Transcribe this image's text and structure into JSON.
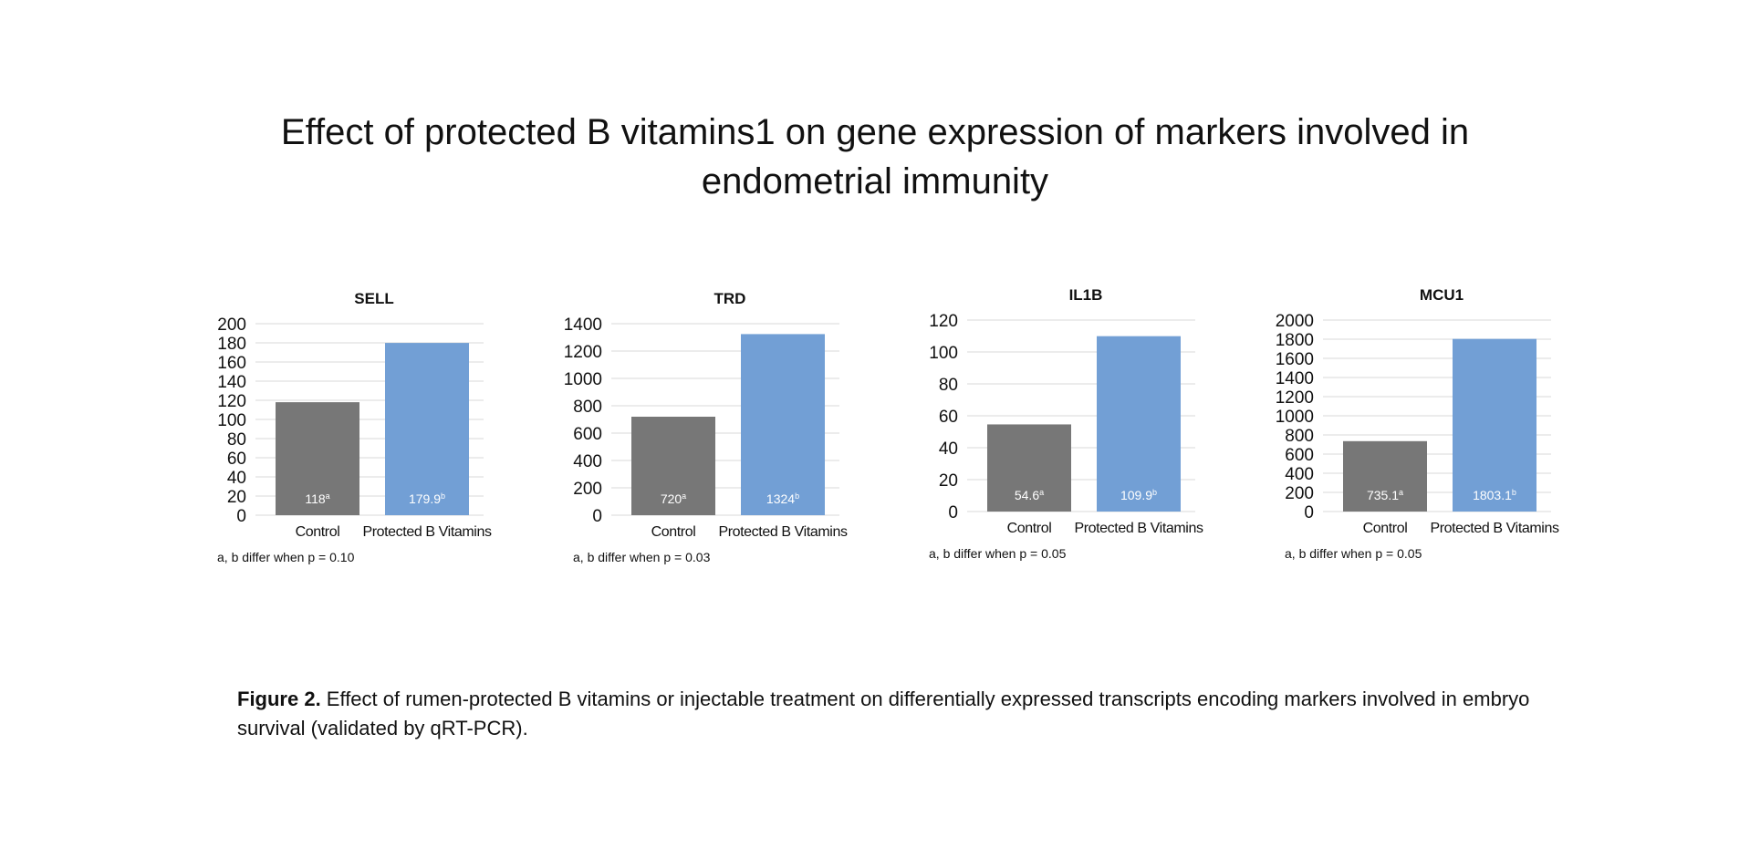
{
  "title": "Effect of protected B vitamins1 on gene expression of markers involved in endometrial immunity",
  "colors": {
    "control": "#777777",
    "treatment": "#729fd5",
    "grid": "#d9d9d9"
  },
  "chart_data": [
    {
      "type": "bar",
      "title": "SELL",
      "categories": [
        "Control",
        "Protected B Vitamins"
      ],
      "values": [
        118,
        179.9
      ],
      "data_labels": [
        {
          "value": "118",
          "sup": "a"
        },
        {
          "value": "179.9",
          "sup": "b"
        }
      ],
      "yticks": [
        0,
        20,
        40,
        60,
        80,
        100,
        120,
        140,
        160,
        180,
        200
      ],
      "ylim": [
        0,
        200
      ],
      "grid": true,
      "note": "a, b differ when p = 0.10"
    },
    {
      "type": "bar",
      "title": "TRD",
      "categories": [
        "Control",
        "Protected B Vitamins"
      ],
      "values": [
        720,
        1324
      ],
      "data_labels": [
        {
          "value": "720",
          "sup": "a"
        },
        {
          "value": "1324",
          "sup": "b"
        }
      ],
      "yticks": [
        0,
        200,
        400,
        600,
        800,
        1000,
        1200,
        1400
      ],
      "ylim": [
        0,
        1400
      ],
      "grid": true,
      "note": "a, b differ when p = 0.03"
    },
    {
      "type": "bar",
      "title": "IL1B",
      "categories": [
        "Control",
        "Protected B Vitamins"
      ],
      "values": [
        54.6,
        109.9
      ],
      "data_labels": [
        {
          "value": "54.6",
          "sup": "a"
        },
        {
          "value": "109.9",
          "sup": "b"
        }
      ],
      "yticks": [
        0,
        20,
        40,
        60,
        80,
        100,
        120
      ],
      "ylim": [
        0,
        120
      ],
      "grid": true,
      "note": "a, b differ when p = 0.05"
    },
    {
      "type": "bar",
      "title": "MCU1",
      "categories": [
        "Control",
        "Protected B Vitamins"
      ],
      "values": [
        735.1,
        1803.1
      ],
      "data_labels": [
        {
          "value": "735.1",
          "sup": "a"
        },
        {
          "value": "1803.1",
          "sup": "b"
        }
      ],
      "yticks": [
        0,
        200,
        400,
        600,
        800,
        1000,
        1200,
        1400,
        1600,
        1800,
        2000
      ],
      "ylim": [
        0,
        2000
      ],
      "grid": true,
      "note": "a, b differ when p = 0.05"
    }
  ],
  "caption": {
    "label": "Figure 2.",
    "text": " Effect of rumen-protected B vitamins or injectable treatment on differentially expressed transcripts encoding markers involved in embryo survival (validated by qRT-PCR)."
  }
}
